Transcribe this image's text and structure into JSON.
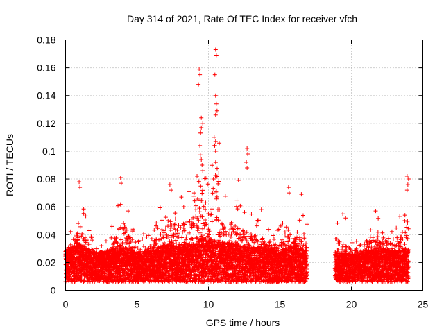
{
  "chart_data": {
    "type": "scatter",
    "title": "Day 314 of 2021, Rate Of TEC Index for receiver vfch",
    "xlabel": "GPS time / hours",
    "ylabel": "ROTI / TECUs",
    "xlim": [
      0,
      25
    ],
    "ylim": [
      0,
      0.18
    ],
    "xticks": [
      0,
      5,
      10,
      15,
      20,
      25
    ],
    "xtick_labels": [
      "0",
      "5",
      "10",
      "15",
      "20",
      "25"
    ],
    "yticks": [
      0,
      0.02,
      0.04,
      0.06,
      0.08,
      0.1,
      0.12,
      0.14,
      0.16,
      0.18
    ],
    "ytick_labels": [
      "0",
      "0.02",
      "0.04",
      "0.06",
      "0.08",
      "0.1",
      "0.12",
      "0.14",
      "0.16",
      "0.18"
    ],
    "grid": true,
    "marker": "+",
    "color": "#ff0000",
    "series": [
      {
        "name": "ROTI",
        "profile_hours": [
          0,
          0.5,
          1,
          2,
          3,
          4,
          5,
          6,
          7,
          8,
          9,
          9.5,
          10,
          10.5,
          11,
          12,
          13,
          14,
          15,
          15.5,
          16,
          16.8,
          19,
          20,
          21,
          22,
          23,
          24
        ],
        "profile_base": [
          0.018,
          0.02,
          0.022,
          0.017,
          0.018,
          0.02,
          0.017,
          0.018,
          0.022,
          0.022,
          0.022,
          0.025,
          0.025,
          0.024,
          0.023,
          0.022,
          0.02,
          0.02,
          0.018,
          0.02,
          0.022,
          0.018,
          0.017,
          0.016,
          0.017,
          0.02,
          0.018,
          0.018
        ],
        "profile_max": [
          0.038,
          0.045,
          0.07,
          0.035,
          0.04,
          0.075,
          0.04,
          0.045,
          0.07,
          0.068,
          0.078,
          0.12,
          0.08,
          0.16,
          0.08,
          0.065,
          0.058,
          0.05,
          0.045,
          0.07,
          0.05,
          0.055,
          0.055,
          0.04,
          0.05,
          0.052,
          0.045,
          0.08
        ],
        "gaps": [
          [
            16.9,
            18.85
          ]
        ],
        "highlights": [
          {
            "x": 9.35,
            "y": 0.159
          },
          {
            "x": 9.4,
            "y": 0.155
          },
          {
            "x": 9.3,
            "y": 0.148
          },
          {
            "x": 10.5,
            "y": 0.173
          },
          {
            "x": 10.55,
            "y": 0.169
          },
          {
            "x": 10.45,
            "y": 0.155
          },
          {
            "x": 10.5,
            "y": 0.14
          },
          {
            "x": 10.55,
            "y": 0.134
          },
          {
            "x": 10.6,
            "y": 0.129
          },
          {
            "x": 10.5,
            "y": 0.126
          },
          {
            "x": 9.5,
            "y": 0.124
          },
          {
            "x": 9.6,
            "y": 0.12
          },
          {
            "x": 9.5,
            "y": 0.117
          },
          {
            "x": 9.45,
            "y": 0.113
          },
          {
            "x": 10.4,
            "y": 0.11
          },
          {
            "x": 10.5,
            "y": 0.107
          },
          {
            "x": 9.4,
            "y": 0.104
          },
          {
            "x": 10.5,
            "y": 0.1
          },
          {
            "x": 12.7,
            "y": 0.102
          },
          {
            "x": 12.75,
            "y": 0.098
          },
          {
            "x": 12.65,
            "y": 0.092
          },
          {
            "x": 12.7,
            "y": 0.088
          },
          {
            "x": 9.5,
            "y": 0.094
          },
          {
            "x": 9.55,
            "y": 0.09
          },
          {
            "x": 9.6,
            "y": 0.086
          },
          {
            "x": 9.2,
            "y": 0.082
          },
          {
            "x": 23.9,
            "y": 0.082
          },
          {
            "x": 24.0,
            "y": 0.08
          },
          {
            "x": 23.95,
            "y": 0.076
          },
          {
            "x": 23.9,
            "y": 0.072
          },
          {
            "x": 3.85,
            "y": 0.081
          },
          {
            "x": 3.9,
            "y": 0.077
          },
          {
            "x": 0.95,
            "y": 0.078
          },
          {
            "x": 1.0,
            "y": 0.074
          },
          {
            "x": 9.0,
            "y": 0.07
          },
          {
            "x": 10.35,
            "y": 0.08
          },
          {
            "x": 12.1,
            "y": 0.079
          },
          {
            "x": 15.6,
            "y": 0.074
          },
          {
            "x": 15.65,
            "y": 0.07
          },
          {
            "x": 16.5,
            "y": 0.069
          },
          {
            "x": 8.1,
            "y": 0.067
          },
          {
            "x": 7.3,
            "y": 0.076
          },
          {
            "x": 7.4,
            "y": 0.072
          },
          {
            "x": 21.7,
            "y": 0.057
          },
          {
            "x": 13.7,
            "y": 0.058
          },
          {
            "x": 19.4,
            "y": 0.055
          },
          {
            "x": 19.6,
            "y": 0.052
          }
        ]
      }
    ]
  }
}
